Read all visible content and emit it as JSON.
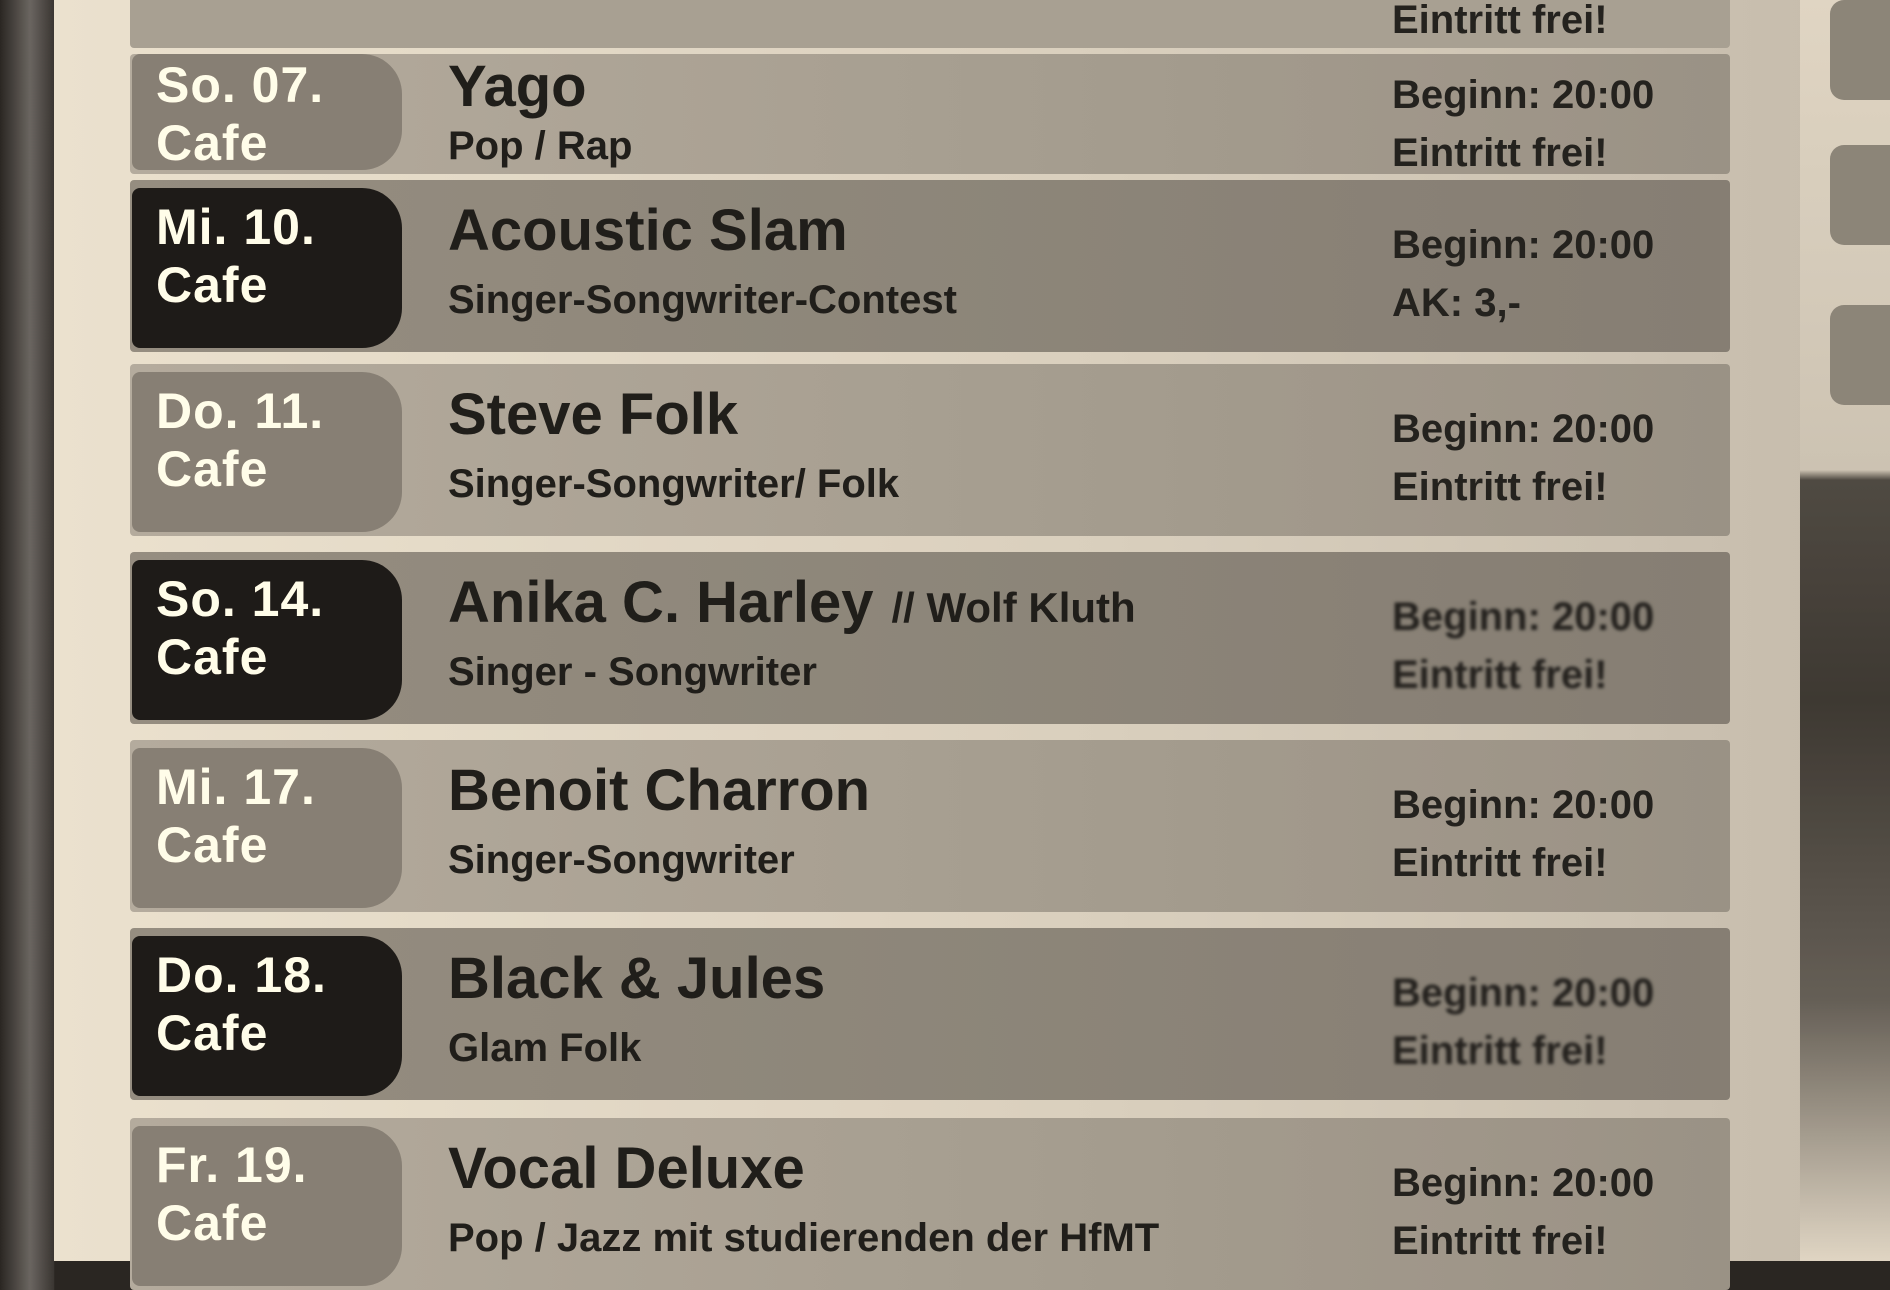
{
  "events": [
    {
      "date": "So. 07.",
      "venue": "Cafe",
      "title": "Yago",
      "extra": "",
      "subtitle": "Pop / Rap",
      "begin": "Beginn: 20:00",
      "entry": "Eintritt frei!",
      "tag": "gray"
    },
    {
      "date": "Mi. 10.",
      "venue": "Cafe",
      "title": "Acoustic Slam",
      "extra": "",
      "subtitle": "Singer-Songwriter-Contest",
      "begin": "Beginn: 20:00",
      "entry": "AK: 3,-",
      "tag": "dark"
    },
    {
      "date": "Do. 11.",
      "venue": "Cafe",
      "title": "Steve Folk",
      "extra": "",
      "subtitle": "Singer-Songwriter/ Folk",
      "begin": "Beginn: 20:00",
      "entry": "Eintritt frei!",
      "tag": "gray"
    },
    {
      "date": "So. 14.",
      "venue": "Cafe",
      "title": "Anika C. Harley",
      "extra": "// Wolf Kluth",
      "subtitle": "Singer - Songwriter",
      "begin": "Beginn: 20:00",
      "entry": "Eintritt frei!",
      "tag": "dark"
    },
    {
      "date": "Mi. 17.",
      "venue": "Cafe",
      "title": "Benoit Charron",
      "extra": "",
      "subtitle": "Singer-Songwriter",
      "begin": "Beginn: 20:00",
      "entry": "Eintritt frei!",
      "tag": "gray"
    },
    {
      "date": "Do. 18.",
      "venue": "Cafe",
      "title": "Black & Jules",
      "extra": "",
      "subtitle": "Glam Folk",
      "begin": "Beginn: 20:00",
      "entry": "Eintritt frei!",
      "tag": "dark"
    },
    {
      "date": "Fr. 19.",
      "venue": "Cafe",
      "title": "Vocal Deluxe",
      "extra": "",
      "subtitle": "Pop / Jazz mit studierenden der HfMT",
      "begin": "Beginn: 20:00",
      "entry": "Eintritt frei!",
      "tag": "gray"
    }
  ],
  "partial_top_entry": "Eintritt frei!"
}
